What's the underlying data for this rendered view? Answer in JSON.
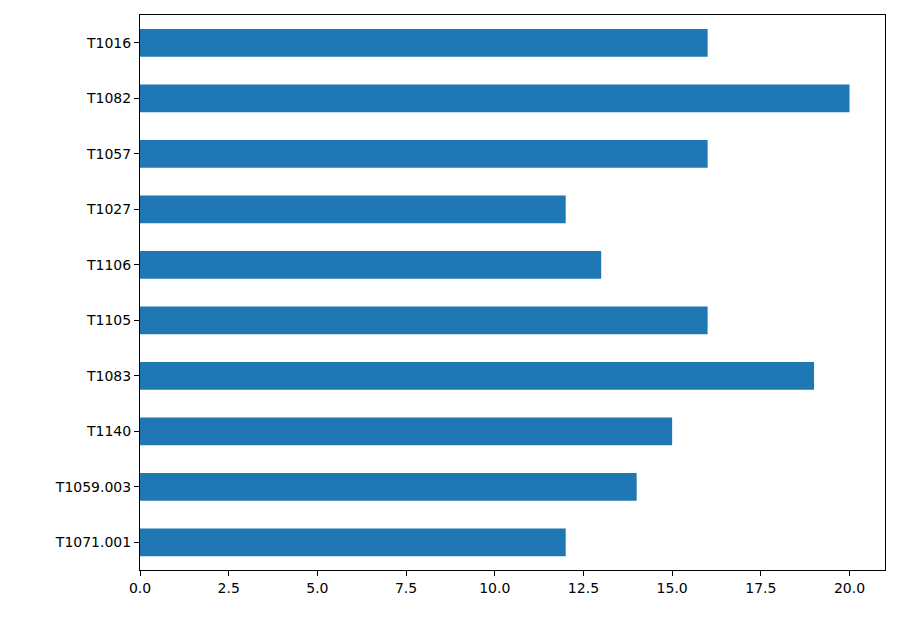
{
  "chart_data": {
    "type": "bar",
    "orientation": "horizontal",
    "categories": [
      "T1071.001",
      "T1059.003",
      "T1140",
      "T1083",
      "T1105",
      "T1106",
      "T1027",
      "T1057",
      "T1082",
      "T1016"
    ],
    "values": [
      12,
      14,
      15,
      19,
      16,
      13,
      12,
      16,
      20,
      16
    ],
    "color": "#1f77b4",
    "xlim": [
      0,
      21
    ],
    "xticks": [
      {
        "value": 0,
        "label": "0.0"
      },
      2.5,
      {
        "value": 5,
        "label": "5.0"
      },
      7.5,
      {
        "value": 10,
        "label": "10.0"
      },
      12.5,
      {
        "value": 15,
        "label": "15.0"
      },
      17.5,
      {
        "value": 20,
        "label": "20.0"
      }
    ],
    "grid": false
  }
}
